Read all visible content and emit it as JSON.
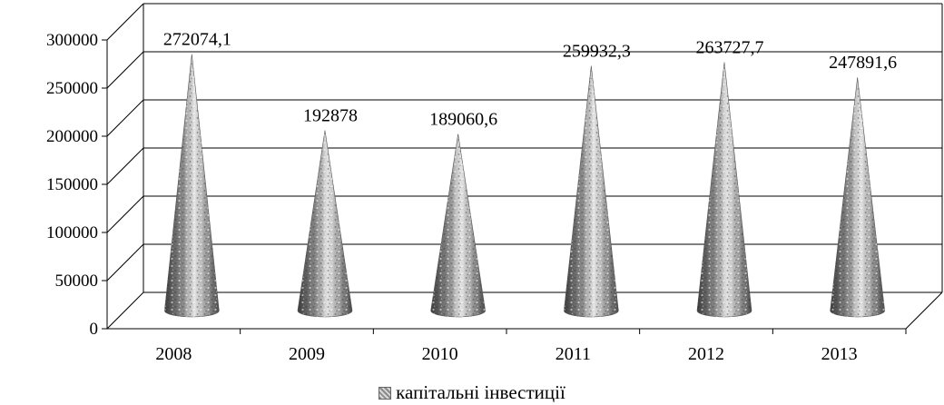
{
  "chart_data": {
    "type": "bar",
    "shape": "cone",
    "three_d": true,
    "categories": [
      "2008",
      "2009",
      "2010",
      "2011",
      "2012",
      "2013"
    ],
    "series": [
      {
        "name": "капітальні інвестиції",
        "values": [
          272074.1,
          192878,
          189060.6,
          259932.3,
          263727.7,
          247891.6
        ]
      }
    ],
    "data_labels": [
      "272074,1",
      "192878",
      "189060,6",
      "259932,3",
      "263727,7",
      "247891,6"
    ],
    "y_ticks": [
      "0",
      "50000",
      "100000",
      "150000",
      "200000",
      "250000",
      "300000"
    ],
    "ylim": [
      0,
      300000
    ],
    "grid": true,
    "legend_position": "bottom",
    "colors": {
      "cone_dark": "#3c3c3c",
      "cone_light": "#eeeeee",
      "grid": "#000000"
    }
  }
}
